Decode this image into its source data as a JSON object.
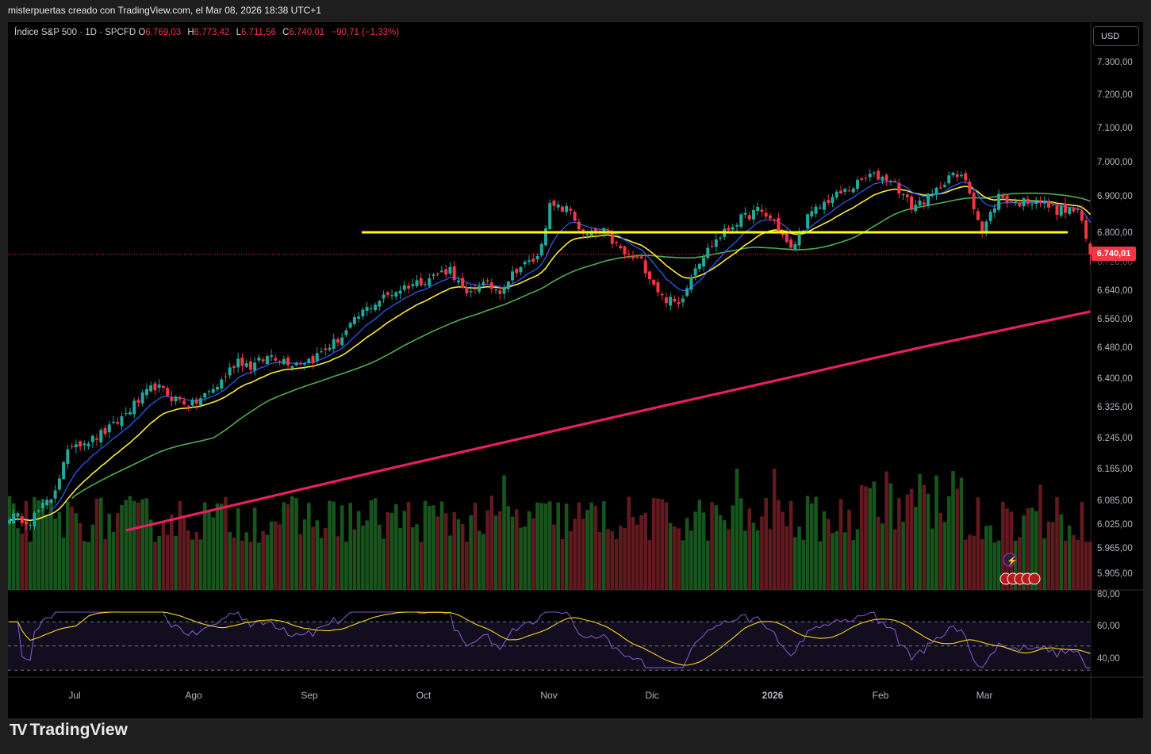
{
  "header": {
    "caption": "misterpuertas creado con TradingView.com, el Mar 08, 2026 18:38 UTC+1"
  },
  "legend": {
    "symbol": "Índice S&P 500 · 1D · SPCFD",
    "open_label": "O",
    "open": "6.769,03",
    "high_label": "H",
    "high": "6.773,42",
    "low_label": "L",
    "low": "6.711,56",
    "close_label": "C",
    "close": "6.740,01",
    "change": "−90,71 (−1,33%)"
  },
  "currency": "USD",
  "last_price": "6.740,01",
  "brand": {
    "logo": "TV",
    "name": "TradingView"
  },
  "colors": {
    "up": "#26a69a",
    "down": "#f23645",
    "ema_fast": "#2962ff",
    "ema_mid": "#ffeb3b",
    "sma_slow": "#4caf50",
    "ma_long": "#e91e63",
    "level": "#ffff00",
    "rsi": "#7e57c2",
    "rsi_ma": "#f9d423"
  },
  "chart_data": {
    "type": "candlestick",
    "y_axis_labels": [
      "7.300,00",
      "7.200,00",
      "7.100,00",
      "7.000,00",
      "6.900,00",
      "6.800,00",
      "6.720,00",
      "6.640,00",
      "6.560,00",
      "6.480,00",
      "6.400,00",
      "6.325,00",
      "6.245,00",
      "6.165,00",
      "6.085,00",
      "6.025,00",
      "5.965,00",
      "5.905,00"
    ],
    "rsi_axis_labels": [
      "80,00",
      "60,00",
      "40,00"
    ],
    "x_axis_labels": [
      "Jul",
      "Ago",
      "Sep",
      "Oct",
      "Nov",
      "Dic",
      "2026",
      "Feb",
      "Mar"
    ],
    "horizontal_level": 6800,
    "anchors_close": [
      [
        0,
        6045
      ],
      [
        5,
        6035
      ],
      [
        10,
        6090
      ],
      [
        15,
        6230
      ],
      [
        20,
        6240
      ],
      [
        25,
        6275
      ],
      [
        30,
        6330
      ],
      [
        35,
        6380
      ],
      [
        39,
        6350
      ],
      [
        44,
        6330
      ],
      [
        50,
        6380
      ],
      [
        55,
        6450
      ],
      [
        58,
        6430
      ],
      [
        63,
        6460
      ],
      [
        68,
        6440
      ],
      [
        73,
        6450
      ],
      [
        80,
        6510
      ],
      [
        85,
        6580
      ],
      [
        90,
        6620
      ],
      [
        95,
        6650
      ],
      [
        100,
        6670
      ],
      [
        106,
        6700
      ],
      [
        110,
        6620
      ],
      [
        113,
        6660
      ],
      [
        118,
        6640
      ],
      [
        122,
        6700
      ],
      [
        127,
        6730
      ],
      [
        130,
        6870
      ],
      [
        135,
        6860
      ],
      [
        138,
        6790
      ],
      [
        143,
        6800
      ],
      [
        148,
        6740
      ],
      [
        152,
        6720
      ],
      [
        157,
        6620
      ],
      [
        161,
        6600
      ],
      [
        165,
        6710
      ],
      [
        170,
        6780
      ],
      [
        175,
        6830
      ],
      [
        180,
        6860
      ],
      [
        184,
        6830
      ],
      [
        188,
        6750
      ],
      [
        192,
        6840
      ],
      [
        197,
        6890
      ],
      [
        202,
        6920
      ],
      [
        207,
        6960
      ],
      [
        212,
        6950
      ],
      [
        217,
        6870
      ],
      [
        222,
        6900
      ],
      [
        226,
        6960
      ],
      [
        230,
        6950
      ],
      [
        234,
        6800
      ],
      [
        238,
        6900
      ],
      [
        242,
        6880
      ],
      [
        247,
        6890
      ],
      [
        252,
        6860
      ],
      [
        257,
        6860
      ],
      [
        260,
        6740
      ]
    ],
    "series": [
      {
        "name": "",
        "kind": "ema",
        "period": 10
      },
      {
        "name": "",
        "kind": "ema",
        "period": 20
      },
      {
        "name": "",
        "kind": "sma",
        "period": 50
      },
      {
        "name": "",
        "kind": "sma",
        "period": 200
      }
    ],
    "rsi_period": 14,
    "bars": 261
  }
}
